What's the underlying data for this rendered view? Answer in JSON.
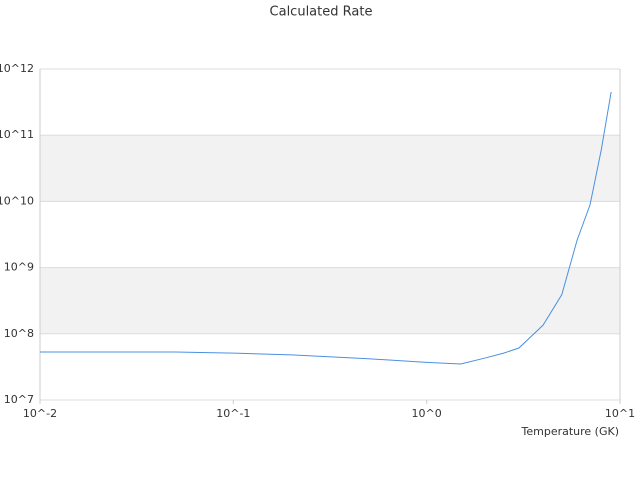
{
  "chart_data": {
    "type": "line",
    "title": "Calculated Rate",
    "x_label": "Temperature (GK)",
    "x": [
      0.01,
      0.05,
      0.1,
      0.2,
      0.5,
      1,
      1.5,
      2,
      2.5,
      3,
      4,
      5,
      6,
      7,
      8,
      9
    ],
    "series": [
      {
        "color": "#4a90e2",
        "values": [
          53000000,
          53000000,
          51000000,
          48000000,
          42000000,
          37000000,
          35000000,
          43000000,
          51000000,
          61000000,
          135000000,
          390000000,
          2600000000,
          8900000000,
          60000000000,
          450000000000
        ]
      }
    ],
    "xlim": [
      0.01,
      10
    ],
    "ylim": [
      10000000,
      1000000000000
    ],
    "x_log": true,
    "y_log": true,
    "grid": true,
    "xticks": [
      {
        "value": 0.01,
        "label": "10^-2"
      },
      {
        "value": 0.1,
        "label": "10^-1"
      },
      {
        "value": 1,
        "label": "10^0"
      },
      {
        "value": 10,
        "label": "10^1"
      }
    ],
    "yticks": [
      {
        "value": 10000000,
        "label": "10^7"
      },
      {
        "value": 100000000,
        "label": "10^8"
      },
      {
        "value": 1000000000,
        "label": "10^9"
      },
      {
        "value": 10000000000,
        "label": "10^10"
      },
      {
        "value": 100000000000,
        "label": "10^11"
      },
      {
        "value": 1000000000000,
        "label": "10^12"
      }
    ]
  }
}
